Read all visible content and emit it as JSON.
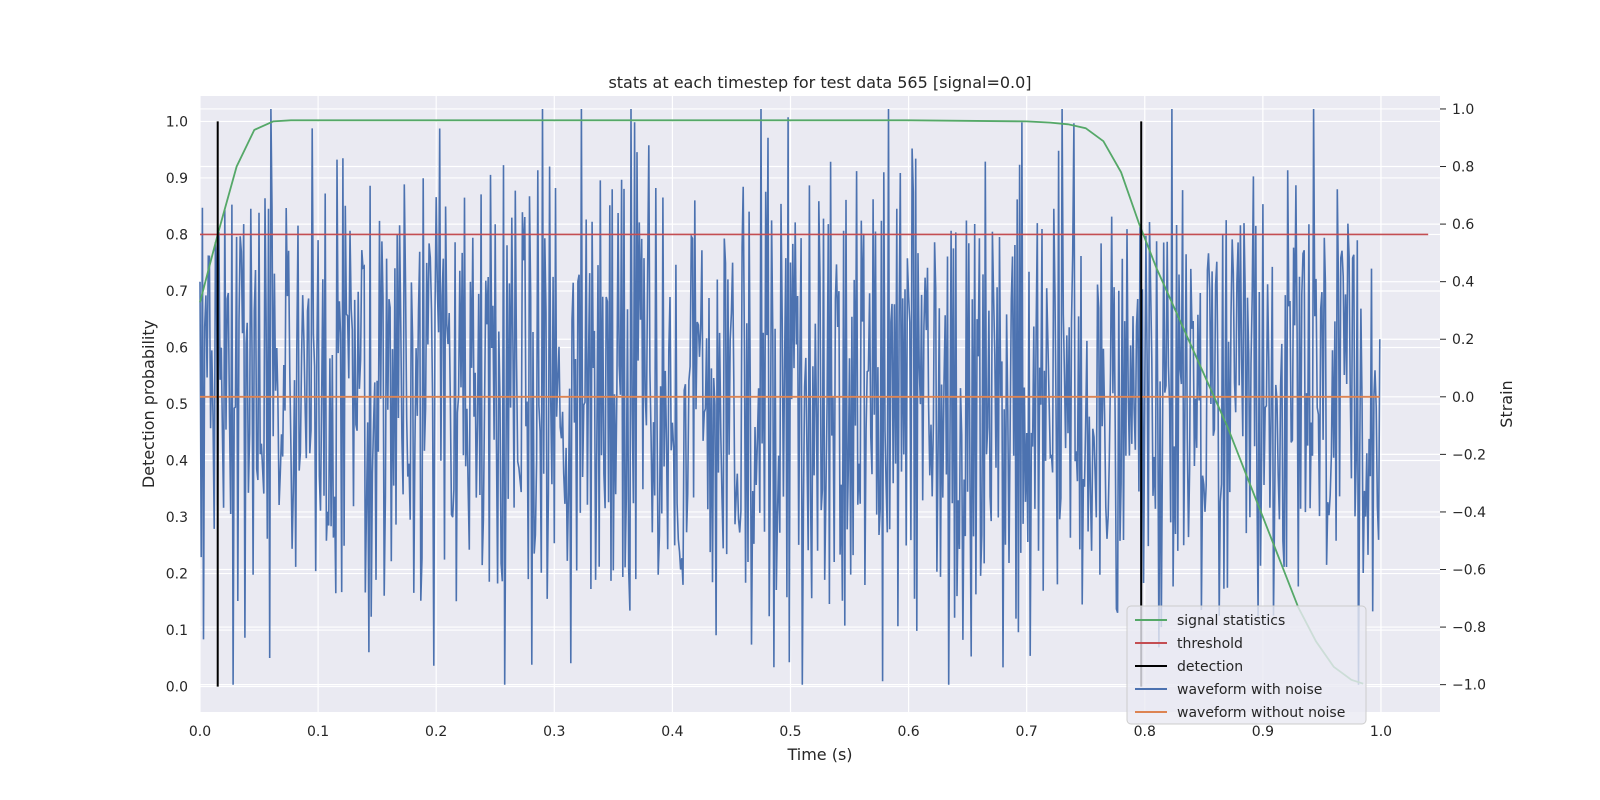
{
  "chart_data": {
    "type": "line",
    "title": "stats at each timestep for test data 565 [signal=0.0]",
    "xlabel": "Time (s)",
    "ylabel_left": "Detection probability",
    "ylabel_right": "Strain",
    "xlim": [
      0.0,
      1.05
    ],
    "ylim_left": [
      -0.045,
      1.045
    ],
    "ylim_right": [
      -1.095,
      1.045
    ],
    "x_ticks": [
      "0.0",
      "0.1",
      "0.2",
      "0.3",
      "0.4",
      "0.5",
      "0.6",
      "0.7",
      "0.8",
      "0.9",
      "1.0"
    ],
    "y_ticks_left": [
      "0.0",
      "0.1",
      "0.2",
      "0.3",
      "0.4",
      "0.5",
      "0.6",
      "0.7",
      "0.8",
      "0.9",
      "1.0"
    ],
    "y_ticks_right": [
      "−1.0",
      "−0.8",
      "−0.6",
      "−0.4",
      "−0.2",
      "0.0",
      "0.2",
      "0.4",
      "0.6",
      "0.8",
      "1.0"
    ],
    "grid": true,
    "legend_position": "lower-right",
    "colors": {
      "background": "#eaeaf2",
      "grid": "#ffffff",
      "signal_statistics": "#55a868",
      "threshold": "#c44e52",
      "detection": "#000000",
      "waveform_with_noise": "#4c72b0",
      "waveform_without_noise": "#dd8452"
    },
    "series": [
      {
        "name": "signal statistics",
        "axis": "left",
        "x": [
          0.0,
          0.015,
          0.031,
          0.046,
          0.062,
          0.077,
          0.093,
          0.108,
          0.15,
          0.3,
          0.45,
          0.6,
          0.7,
          0.72,
          0.735,
          0.75,
          0.765,
          0.78,
          0.795,
          0.81,
          0.825,
          0.84,
          0.855,
          0.87,
          0.885,
          0.9,
          0.915,
          0.93,
          0.945,
          0.96,
          0.975,
          0.985
        ],
        "values": [
          0.68,
          0.8,
          0.92,
          0.985,
          1.0,
          1.002,
          1.002,
          1.002,
          1.002,
          1.002,
          1.002,
          1.002,
          1.0,
          0.998,
          0.995,
          0.988,
          0.965,
          0.91,
          0.82,
          0.74,
          0.67,
          0.6,
          0.53,
          0.46,
          0.38,
          0.3,
          0.22,
          0.14,
          0.08,
          0.035,
          0.012,
          0.005
        ]
      },
      {
        "name": "threshold",
        "axis": "left",
        "x": [
          0.0,
          1.04
        ],
        "values": [
          0.8,
          0.8
        ]
      },
      {
        "name": "detection",
        "axis": "left",
        "segments": [
          {
            "x": 0.015,
            "y0": 0.0,
            "y1": 1.0
          },
          {
            "x": 0.797,
            "y0": 0.0,
            "y1": 1.0
          }
        ]
      },
      {
        "name": "waveform with noise",
        "axis": "right",
        "x_range": [
          0.0,
          0.999
        ],
        "n_points": 1000,
        "amplitude_range": [
          -1.0,
          1.0
        ],
        "values": [
          0.4,
          0.9,
          -0.5,
          0.1,
          -0.8,
          0.3,
          -0.2,
          0.6,
          -0.7,
          0.2,
          0.85,
          -0.4,
          0.5,
          -0.9,
          0.35,
          -0.1,
          0.7,
          -0.6,
          0.15,
          -0.3,
          0.95,
          -0.45,
          0.25,
          -1.0,
          0.55,
          -0.15,
          0.8,
          -0.75,
          0.05,
          -0.35
        ]
      },
      {
        "name": "waveform without noise",
        "axis": "right",
        "x": [
          0.0,
          0.999
        ],
        "values": [
          0.0,
          0.0
        ]
      }
    ],
    "legend": [
      "signal statistics",
      "threshold",
      "detection",
      "waveform with noise",
      "waveform without noise"
    ]
  }
}
